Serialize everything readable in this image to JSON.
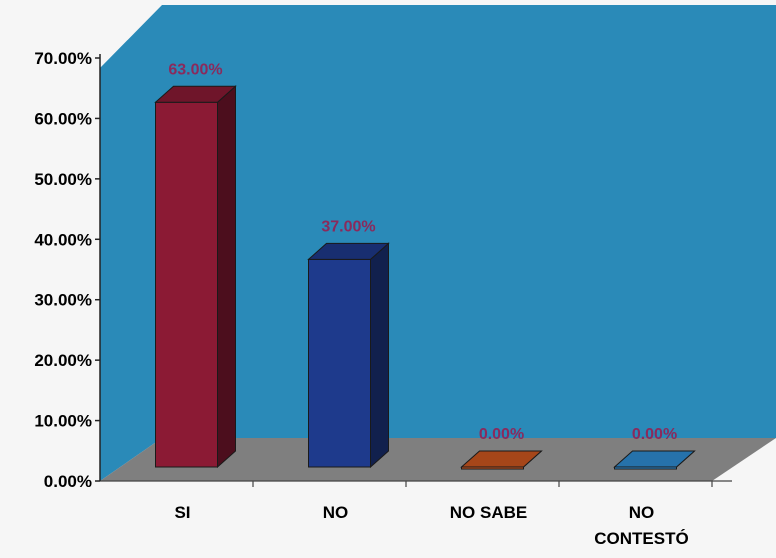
{
  "chart_data": {
    "type": "bar",
    "title": "",
    "xlabel": "",
    "ylabel": "",
    "categories": [
      "SI",
      "NO",
      "NO SABE",
      "NO CONTESTÓ"
    ],
    "values": [
      63.0,
      37.0,
      0.0,
      0.0
    ],
    "data_labels": [
      "63.00%",
      "37.00%",
      "0.00%",
      "0.00%"
    ],
    "y_ticks": [
      "0.00%",
      "10.00%",
      "20.00%",
      "30.00%",
      "40.00%",
      "50.00%",
      "60.00%",
      "70.00%"
    ],
    "ylim": [
      0,
      70
    ],
    "grid": false,
    "legend": "none",
    "style": "3d",
    "colors": {
      "bars": [
        "#8b1a34",
        "#1e3a8c",
        "#d0571f",
        "#2f8fd6"
      ],
      "wall": "#2a8ab8",
      "floor": "#7f7f7f",
      "data_label": "#8a2a5c",
      "axis_text": "#000000"
    }
  }
}
